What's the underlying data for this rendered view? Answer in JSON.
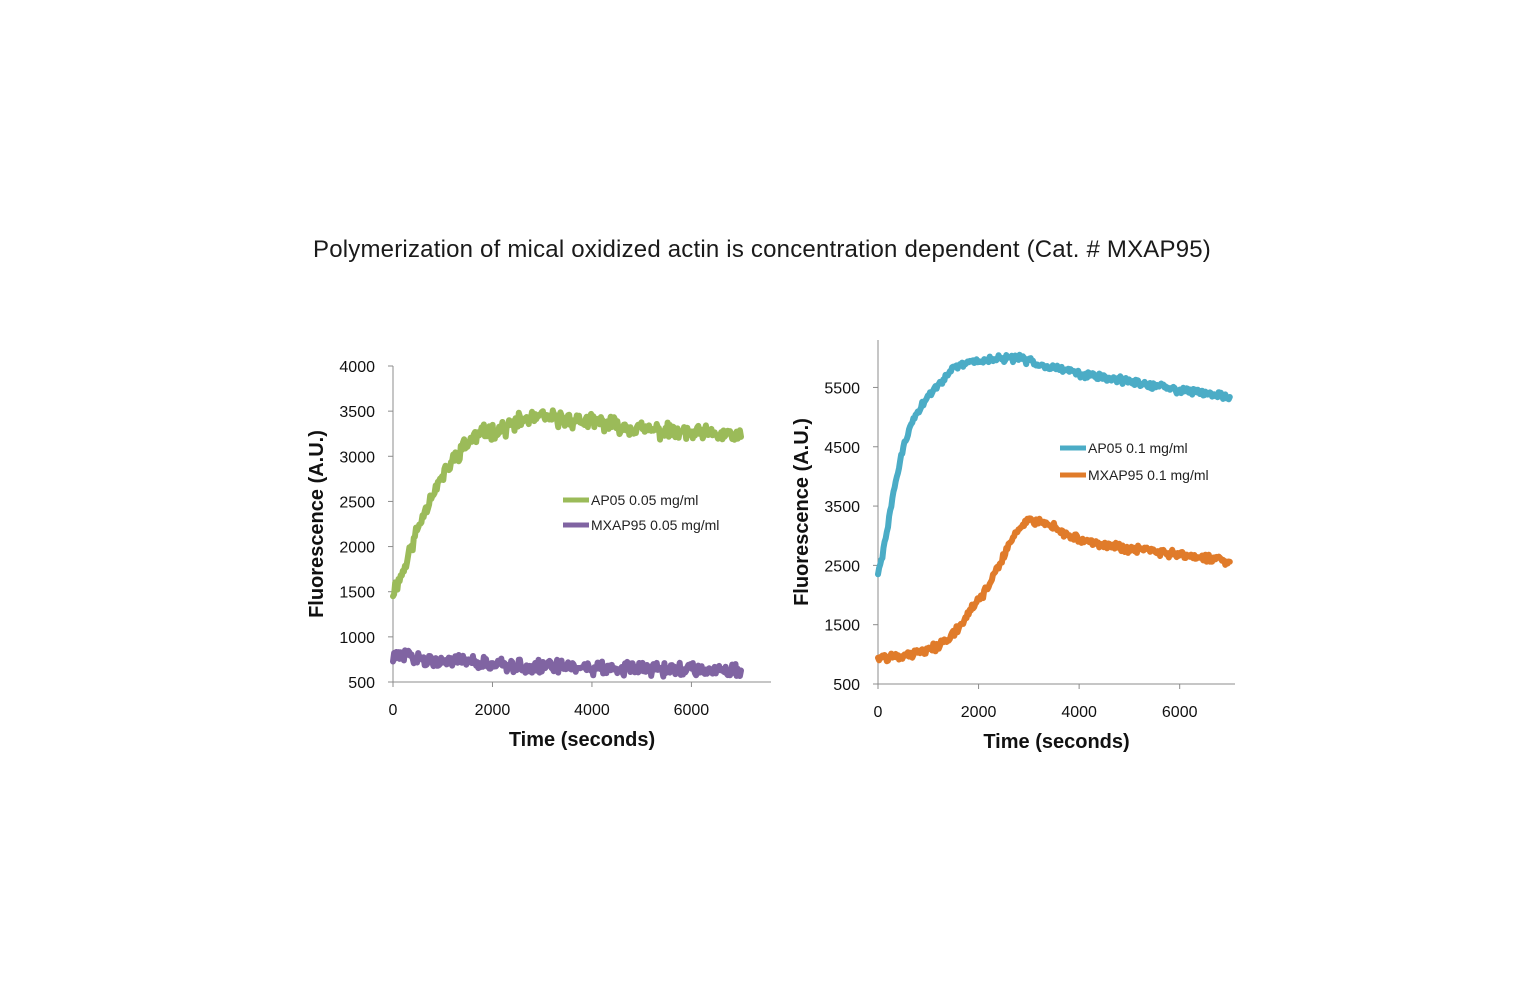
{
  "title": "Polymerization of mical oxidized actin is concentration dependent (Cat. # MXAP95)",
  "chart_data": [
    {
      "type": "line",
      "xlabel": "Time (seconds)",
      "ylabel": "Fluorescence (A.U.)",
      "xlim": [
        0,
        7600
      ],
      "ylim": [
        500,
        4000
      ],
      "xticks": [
        0,
        2000,
        4000,
        6000
      ],
      "yticks": [
        500,
        1000,
        1500,
        2000,
        2500,
        3000,
        3500,
        4000
      ],
      "legend_position": "center-right",
      "series": [
        {
          "name": "AP05 0.05 mg/ml",
          "color": "#9bbb59",
          "x": [
            0,
            200,
            400,
            600,
            800,
            1000,
            1200,
            1400,
            1600,
            1800,
            2000,
            2200,
            2400,
            2600,
            2800,
            3000,
            3200,
            3400,
            3600,
            3800,
            4000,
            4200,
            4400,
            4600,
            4800,
            5000,
            5200,
            5400,
            5600,
            5800,
            6000,
            6200,
            6400,
            6600,
            6800,
            7000
          ],
          "values": [
            1500,
            1720,
            2050,
            2350,
            2600,
            2780,
            2950,
            3100,
            3200,
            3260,
            3280,
            3300,
            3350,
            3400,
            3420,
            3430,
            3420,
            3410,
            3400,
            3390,
            3380,
            3370,
            3350,
            3330,
            3320,
            3300,
            3290,
            3280,
            3270,
            3260,
            3250,
            3250,
            3240,
            3240,
            3230,
            3230
          ]
        },
        {
          "name": "MXAP95 0.05 mg/ml",
          "color": "#8064a2",
          "x": [
            0,
            200,
            400,
            600,
            800,
            1000,
            1200,
            1400,
            1600,
            1800,
            2000,
            2200,
            2400,
            2600,
            2800,
            3000,
            3200,
            3400,
            3600,
            3800,
            4000,
            4200,
            4400,
            4600,
            4800,
            5000,
            5200,
            5400,
            5600,
            5800,
            6000,
            6200,
            6400,
            6600,
            6800,
            7000
          ],
          "values": [
            780,
            790,
            770,
            760,
            750,
            740,
            730,
            720,
            710,
            700,
            690,
            690,
            680,
            680,
            670,
            670,
            665,
            660,
            660,
            655,
            655,
            650,
            650,
            650,
            648,
            645,
            645,
            642,
            640,
            640,
            640,
            640,
            640,
            640,
            640,
            640
          ]
        }
      ]
    },
    {
      "type": "line",
      "xlabel": "Time (seconds)",
      "ylabel": "Fluorescence (A.U.)",
      "xlim": [
        0,
        7100
      ],
      "ylim": [
        500,
        6300
      ],
      "xticks": [
        0,
        2000,
        4000,
        6000
      ],
      "yticks": [
        500,
        1500,
        2500,
        3500,
        4500,
        5500
      ],
      "legend_position": "center-right",
      "series": [
        {
          "name": "AP05 0.1 mg/ml",
          "color": "#4bacc6",
          "x": [
            0,
            100,
            200,
            300,
            400,
            500,
            600,
            700,
            800,
            1000,
            1200,
            1400,
            1600,
            1800,
            2000,
            2200,
            2400,
            2600,
            2800,
            3000,
            3200,
            3400,
            3600,
            3800,
            4000,
            4200,
            4400,
            4600,
            4800,
            5000,
            5200,
            5400,
            5600,
            5800,
            6000,
            6200,
            6400,
            6600,
            6800,
            7000
          ],
          "values": [
            2350,
            2700,
            3200,
            3700,
            4100,
            4450,
            4750,
            4950,
            5100,
            5350,
            5550,
            5750,
            5850,
            5920,
            5950,
            5970,
            5980,
            5990,
            5990,
            5950,
            5900,
            5860,
            5820,
            5780,
            5740,
            5700,
            5680,
            5650,
            5630,
            5600,
            5570,
            5540,
            5510,
            5480,
            5460,
            5440,
            5420,
            5400,
            5380,
            5330
          ]
        },
        {
          "name": "MXAP95 0.1 mg/ml",
          "color": "#e07b2a",
          "x": [
            0,
            200,
            400,
            600,
            800,
            1000,
            1200,
            1400,
            1600,
            1800,
            2000,
            2200,
            2400,
            2600,
            2800,
            3000,
            3200,
            3400,
            3600,
            3800,
            4000,
            4200,
            4400,
            4600,
            4800,
            5000,
            5200,
            5400,
            5600,
            5800,
            6000,
            6200,
            6400,
            6600,
            6800,
            7000
          ],
          "values": [
            950,
            950,
            970,
            1000,
            1030,
            1080,
            1150,
            1280,
            1450,
            1700,
            1900,
            2150,
            2500,
            2850,
            3100,
            3250,
            3250,
            3200,
            3100,
            3000,
            2950,
            2900,
            2850,
            2830,
            2800,
            2780,
            2760,
            2740,
            2720,
            2700,
            2680,
            2660,
            2640,
            2620,
            2600,
            2550
          ]
        }
      ]
    }
  ]
}
